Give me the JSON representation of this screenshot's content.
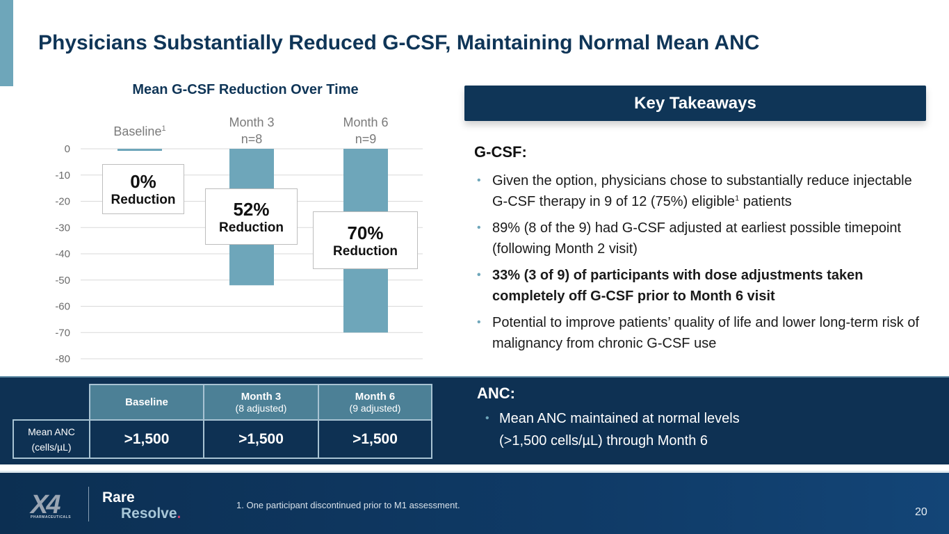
{
  "slide": {
    "title": "Physicians Substantially Reduced G-CSF, Maintaining Normal Mean ANC",
    "page_number": "20",
    "footnote": "1. One participant discontinued prior to M1 assessment."
  },
  "colors": {
    "brand_navy": "#0f3557",
    "bar_color": "#6ea6ba",
    "band_dark": "#0e3153",
    "table_header": "#4c8096",
    "logo_accent": "#d03a6a"
  },
  "chart_data": {
    "type": "bar",
    "title": "Mean G-CSF Reduction Over Time",
    "categories": [
      "Baseline",
      "Month 3",
      "Month 6"
    ],
    "category_superscripts": [
      "1",
      "",
      ""
    ],
    "category_sublabels": [
      "",
      "n=8",
      "n=9"
    ],
    "values": [
      0,
      -52,
      -70
    ],
    "ylim": [
      -80,
      0
    ],
    "yticks": [
      0,
      -10,
      -20,
      -30,
      -40,
      -50,
      -60,
      -70,
      -80
    ],
    "grid": true,
    "xlabel": "",
    "ylabel": "",
    "annotations": [
      {
        "value": "0%",
        "label": "Reduction"
      },
      {
        "value": "52%",
        "label": "Reduction"
      },
      {
        "value": "70%",
        "label": "Reduction"
      }
    ]
  },
  "takeaways": {
    "header": "Key Takeaways",
    "gcsf_heading": "G-CSF:",
    "bullets": [
      {
        "pre": "Given the option, physicians chose to substantially reduce injectable G-CSF therapy in 9 of 12 (75%) eligible",
        "sup": "1",
        "post": " patients"
      },
      {
        "pre": "89% (8 of the 9) had G-CSF adjusted at earliest possible timepoint (following Month 2 visit)"
      },
      {
        "pre": "33% (3 of 9) of participants with dose adjustments taken completely off G-CSF prior to Month 6 visit"
      },
      {
        "pre": "Potential to improve patients’ quality of life and lower long-term risk of malignancy from chronic G-CSF use"
      }
    ],
    "anc_heading": "ANC:",
    "anc_bullet_line1": "Mean ANC maintained at normal levels",
    "anc_bullet_line2": "(>1,500 cells/µL) through Month 6",
    "bullet_glyph": "•"
  },
  "anc_table": {
    "headers": [
      {
        "title": "Baseline",
        "sub": ""
      },
      {
        "title": "Month 3",
        "sub": "(8 adjusted)"
      },
      {
        "title": "Month 6",
        "sub": "(9 adjusted)"
      }
    ],
    "row_label_line1": "Mean ANC",
    "row_label_line2": "(cells/µL)",
    "values": [
      ">1,500",
      ">1,500",
      ">1,500"
    ]
  },
  "logo": {
    "mark": "X4",
    "sub": "PHARMACEUTICALS",
    "line1": "Rare",
    "line2": "Resolve",
    "dot": "."
  }
}
